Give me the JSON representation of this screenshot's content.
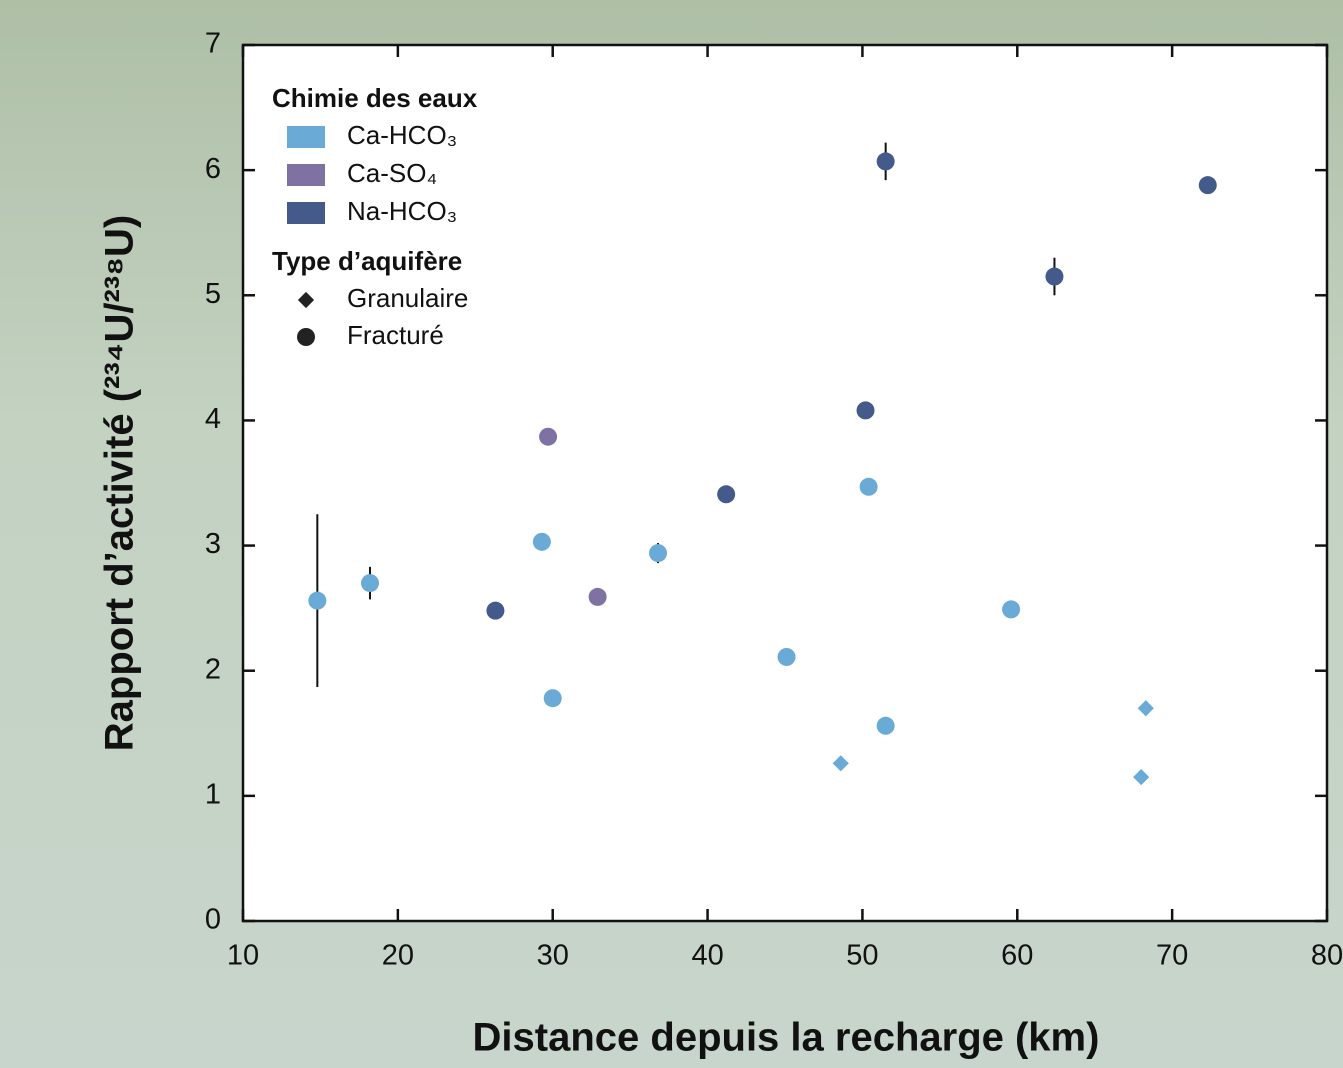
{
  "chart_data": {
    "type": "scatter",
    "x_label": "Distance depuis la recharge (km)",
    "y_label": "Rapport d’activité (²³⁴U/²³⁸U)",
    "xlim": [
      10,
      80
    ],
    "xticks": [
      10,
      20,
      30,
      40,
      50,
      60,
      70,
      80
    ],
    "ylim": [
      0,
      7
    ],
    "yticks": [
      0,
      1,
      2,
      3,
      4,
      5,
      6,
      7
    ],
    "legend": {
      "chemistry_title": "Chimie des eaux",
      "chemistry": [
        {
          "name": "Ca-HCO₃",
          "color": "#6aaad6"
        },
        {
          "name": "Ca-SO₄",
          "color": "#7f72a3"
        },
        {
          "name": "Na-HCO₃",
          "color": "#445a8a"
        }
      ],
      "aquifer_title": "Type d’aquifère",
      "aquifer": [
        {
          "name": "Granulaire",
          "marker": "diamond"
        },
        {
          "name": "Fracturé",
          "marker": "circle"
        }
      ]
    },
    "series": [
      {
        "color": "#6aaad6",
        "marker": "circle",
        "x": [
          14.8,
          18.2,
          29.3,
          30.0,
          36.8,
          45.1,
          50.4,
          51.5,
          59.6
        ],
        "values": [
          2.56,
          2.7,
          3.03,
          1.78,
          2.94,
          2.11,
          3.47,
          1.56,
          2.49
        ],
        "errors": [
          0.69,
          0.13,
          null,
          null,
          0.08,
          null,
          null,
          null,
          null
        ]
      },
      {
        "color": "#6aaad6",
        "marker": "diamond",
        "x": [
          48.6,
          68.0,
          68.3
        ],
        "values": [
          1.26,
          1.15,
          1.7
        ],
        "errors": [
          null,
          null,
          null
        ]
      },
      {
        "color": "#7f72a3",
        "marker": "circle",
        "x": [
          29.7,
          32.9
        ],
        "values": [
          3.87,
          2.59
        ],
        "errors": [
          null,
          null
        ]
      },
      {
        "color": "#445a8a",
        "marker": "circle",
        "x": [
          26.3,
          41.2,
          50.2,
          51.5,
          62.4,
          72.3
        ],
        "values": [
          2.48,
          3.41,
          4.08,
          6.07,
          5.15,
          5.88
        ],
        "errors": [
          null,
          null,
          null,
          0.15,
          0.15,
          null
        ]
      }
    ]
  }
}
